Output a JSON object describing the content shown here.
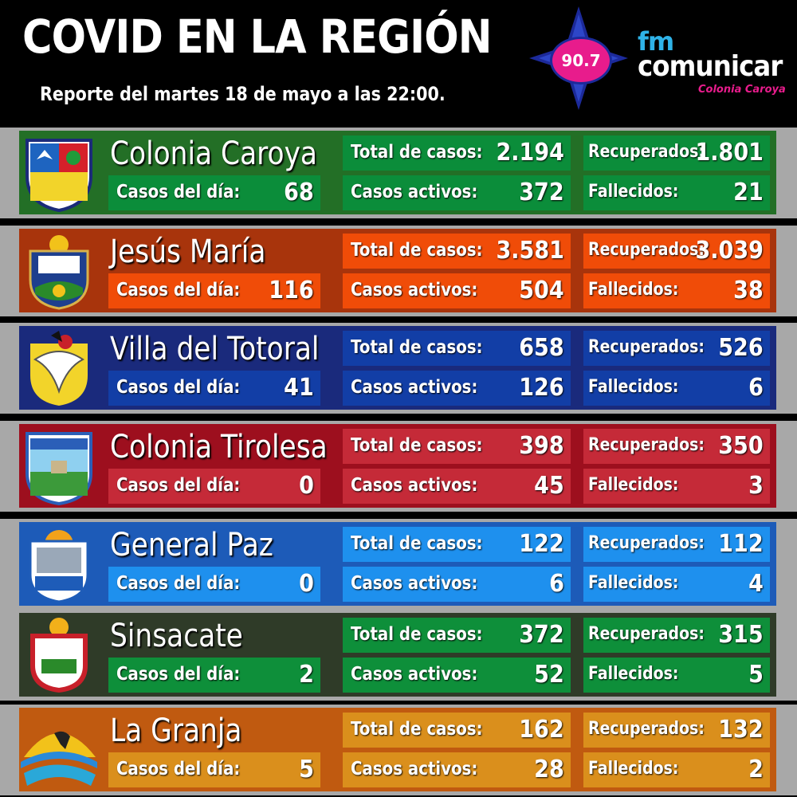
{
  "header": {
    "title": "COVID EN LA REGIÓN",
    "subtitle": "Reporte del martes 18 de mayo a las 22:00.",
    "frequency": "90.7",
    "brand_fm": "fm",
    "brand_name": "comunicar",
    "brand_city": "Colonia Caroya"
  },
  "labels": {
    "total": "Total de casos:",
    "recovered": "Recuperados:",
    "daily": "Casos del día:",
    "active": "Casos activos:",
    "deaths": "Fallecidos:"
  },
  "rows": [
    {
      "name": "Colonia Caroya",
      "total": "2.194",
      "recovered": "1.801",
      "daily": "68",
      "active": "372",
      "deaths": "21",
      "band_color": "#236f26",
      "box_color": "#0b8d3a"
    },
    {
      "name": "Jesús María",
      "total": "3.581",
      "recovered": "3.039",
      "daily": "116",
      "active": "504",
      "deaths": "38",
      "band_color": "#a8340c",
      "box_color": "#f04c08"
    },
    {
      "name": "Villa del Totoral",
      "total": "658",
      "recovered": "526",
      "daily": "41",
      "active": "126",
      "deaths": "6",
      "band_color": "#1a2a7c",
      "box_color": "#123ea6"
    },
    {
      "name": "Colonia Tirolesa",
      "total": "398",
      "recovered": "350",
      "daily": "0",
      "active": "45",
      "deaths": "3",
      "band_color": "#9d0f1e",
      "box_color": "#c52a38"
    },
    {
      "name": "General Paz",
      "total": "122",
      "recovered": "112",
      "daily": "0",
      "active": "6",
      "deaths": "4",
      "band_color": "#1d5bb8",
      "box_color": "#1e90ee"
    },
    {
      "name": "Sinsacate",
      "total": "372",
      "recovered": "315",
      "daily": "2",
      "active": "52",
      "deaths": "5",
      "band_color": "#2f3b28",
      "box_color": "#0e8f3a"
    },
    {
      "name": "La Granja",
      "total": "162",
      "recovered": "132",
      "daily": "5",
      "active": "28",
      "deaths": "2",
      "band_color": "#c05a10",
      "box_color": "#da8f1c"
    }
  ]
}
